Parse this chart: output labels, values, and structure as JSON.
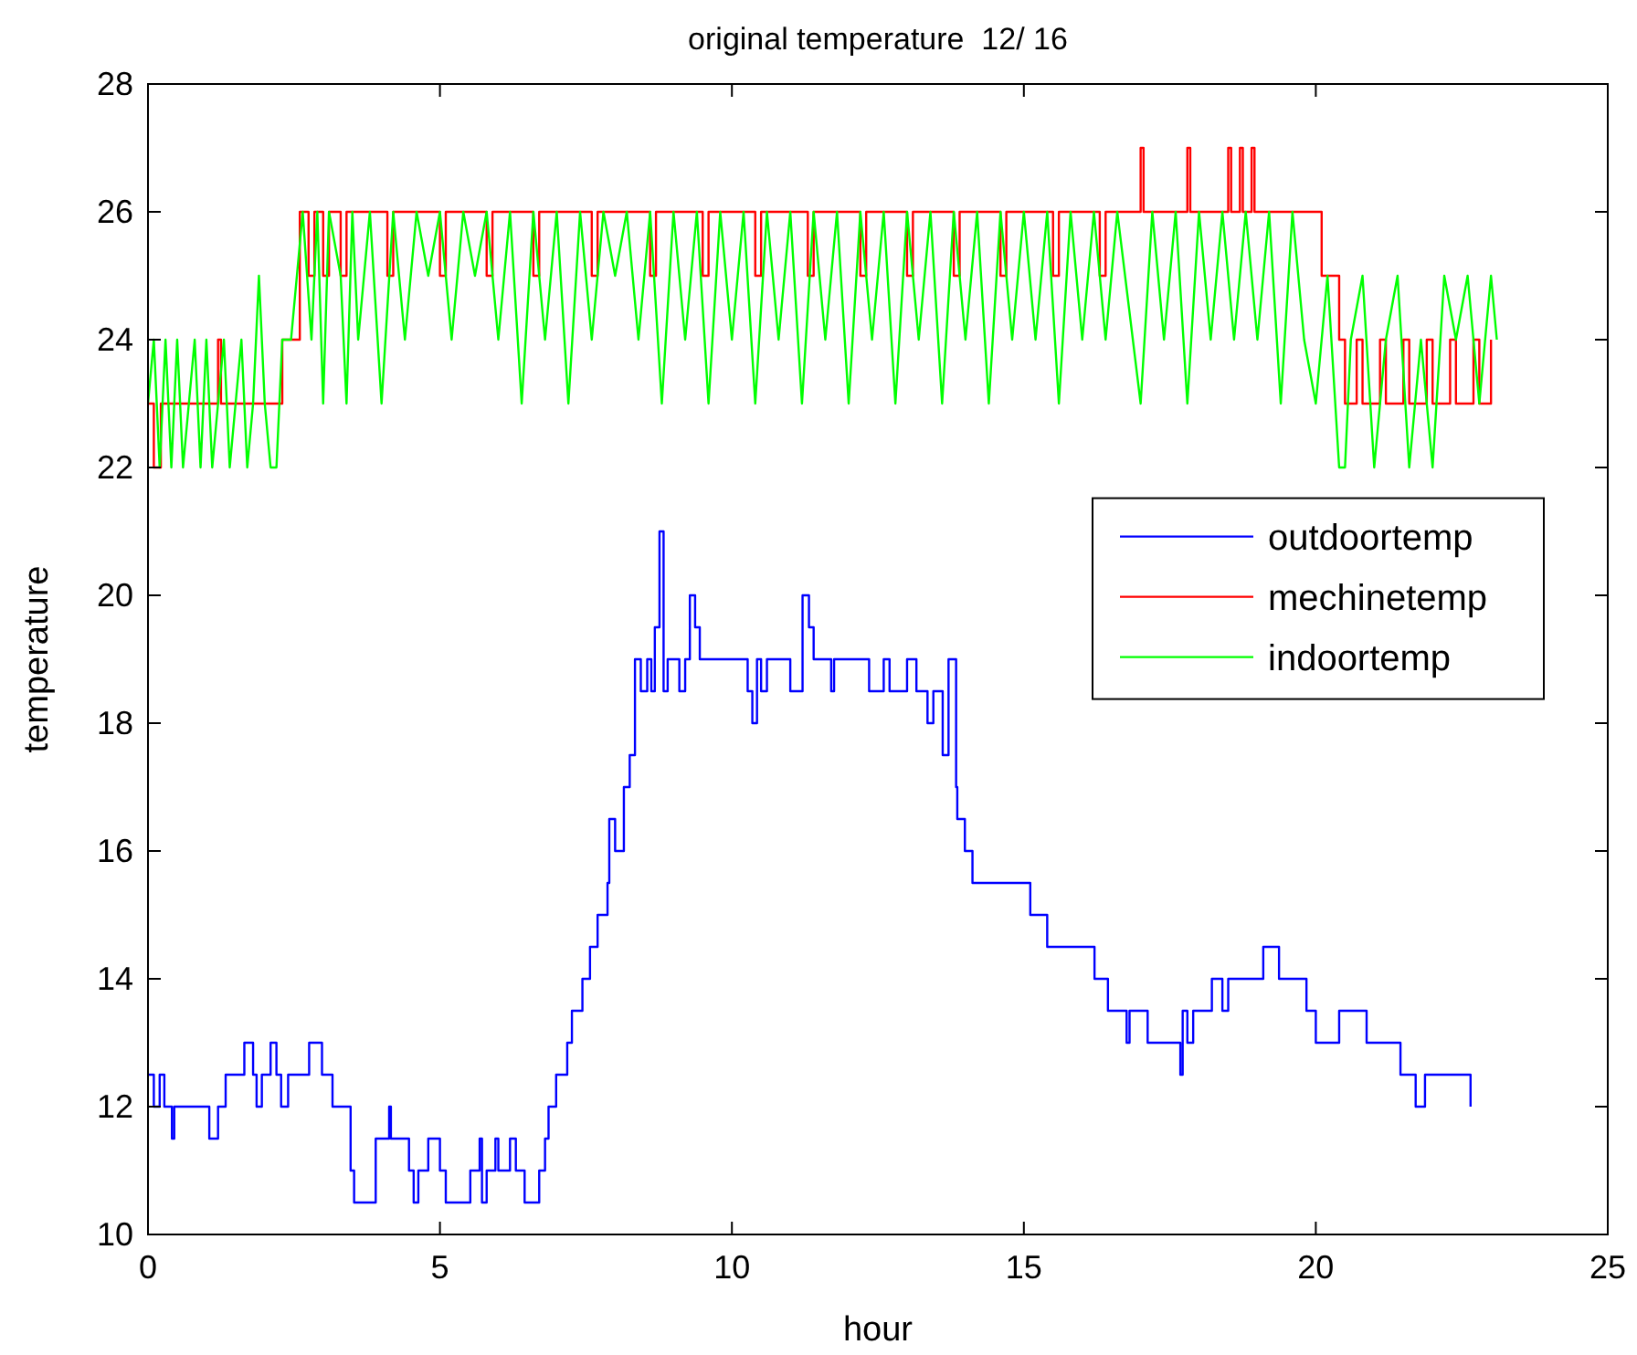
{
  "chart_data": {
    "type": "line",
    "title": "original temperature  12/ 16",
    "xlabel": "hour",
    "ylabel": "temperature",
    "xlim": [
      0,
      25
    ],
    "xticks": [
      0,
      5,
      10,
      15,
      20,
      25
    ],
    "ylim": [
      10,
      28
    ],
    "yticks": [
      10,
      12,
      14,
      16,
      18,
      20,
      22,
      24,
      26,
      28
    ],
    "grid": false,
    "legend": "top right",
    "line_style": "solid",
    "series": [
      {
        "name": "outdoortemp",
        "type": "step",
        "color": "#0000ff",
        "x": [
          0,
          0.1,
          0.2,
          0.28,
          0.41,
          0.45,
          1.05,
          1.2,
          1.33,
          1.65,
          1.8,
          1.86,
          1.95,
          2.1,
          2.2,
          2.28,
          2.4,
          2.76,
          2.98,
          3.16,
          3.47,
          3.53,
          3.6,
          3.9,
          4.13,
          4.16,
          4.47,
          4.55,
          4.63,
          4.8,
          5.0,
          5.1,
          5.52,
          5.68,
          5.72,
          5.8,
          5.95,
          6.0,
          6.2,
          6.3,
          6.45,
          6.7,
          6.8,
          6.86,
          6.99,
          7.18,
          7.26,
          7.44,
          7.57,
          7.7,
          7.87,
          7.9,
          8.0,
          8.15,
          8.25,
          8.34,
          8.44,
          8.55,
          8.62,
          8.68,
          8.76,
          8.83,
          8.9,
          9.1,
          9.2,
          9.28,
          9.37,
          9.45,
          9.5,
          10.27,
          10.35,
          10.43,
          10.5,
          10.6,
          11.0,
          11.21,
          11.32,
          11.4,
          11.47,
          11.7,
          11.75,
          12.3,
          12.35,
          12.6,
          12.7,
          13.0,
          13.16,
          13.35,
          13.45,
          13.58,
          13.61,
          13.71,
          13.84,
          13.86,
          13.99,
          14.12,
          15.11,
          15.4,
          16.21,
          16.44,
          16.76,
          16.81,
          17.12,
          17.68,
          17.72,
          17.8,
          17.9,
          18.02,
          18.22,
          18.4,
          18.5,
          19.1,
          19.37,
          19.84,
          20.0,
          20.4,
          20.87,
          21.45,
          21.71,
          21.87,
          22.65
        ],
        "values": [
          12.5,
          12,
          12.5,
          12,
          11.5,
          12,
          11.5,
          12,
          12.5,
          13,
          12.5,
          12,
          12.5,
          13,
          12.5,
          12,
          12.5,
          13,
          12.5,
          12,
          11,
          10.5,
          10.5,
          11.5,
          12,
          11.5,
          11,
          10.5,
          11,
          11.5,
          11,
          10.5,
          11,
          11.5,
          10.5,
          11,
          11.5,
          11,
          11.5,
          11,
          10.5,
          11,
          11.5,
          12,
          12.5,
          13,
          13.5,
          14,
          14.5,
          15,
          15.5,
          16.5,
          16,
          17,
          17.5,
          19,
          18.5,
          19,
          18.5,
          19.5,
          21,
          18.5,
          19,
          18.5,
          19,
          20,
          19.5,
          19,
          19,
          18.5,
          18,
          19,
          18.5,
          19,
          18.5,
          20,
          19.5,
          19,
          19,
          18.5,
          19,
          19,
          18.5,
          19,
          18.5,
          19,
          18.5,
          18,
          18.5,
          18.5,
          17.5,
          19,
          17,
          16.5,
          16,
          15.5,
          15,
          14.5,
          14,
          13.5,
          13,
          13.5,
          13,
          12.5,
          13.5,
          13,
          13.5,
          13.5,
          14,
          13.5,
          14,
          14.5,
          14,
          13.5,
          13,
          13.5,
          13,
          12.5,
          12,
          12.5,
          12
        ]
      },
      {
        "name": "mechinetemp",
        "type": "step",
        "color": "#ff0000",
        "x": [
          0,
          0.1,
          0.22,
          1.2,
          1.25,
          2.3,
          2.6,
          2.75,
          2.85,
          3.0,
          3.1,
          3.3,
          3.4,
          4.1,
          4.2,
          5.0,
          5.1,
          5.8,
          5.9,
          6.6,
          6.7,
          7.6,
          7.7,
          8.6,
          8.7,
          9.5,
          9.6,
          10.4,
          10.5,
          11.3,
          11.4,
          12.2,
          12.3,
          13.0,
          13.1,
          13.8,
          13.9,
          14.6,
          14.7,
          15.5,
          15.6,
          16.3,
          16.4,
          17.0,
          17.05,
          17.8,
          17.85,
          18.5,
          18.55,
          18.7,
          18.75,
          18.9,
          18.95,
          20.1,
          20.4,
          20.5,
          20.7,
          20.8,
          21.1,
          21.2,
          21.5,
          21.6,
          21.9,
          22.0,
          22.3,
          22.4,
          22.7,
          22.8,
          23.0
        ],
        "values": [
          23,
          22,
          23,
          24,
          23,
          24,
          26,
          25,
          26,
          25,
          26,
          25,
          26,
          25,
          26,
          25,
          26,
          25,
          26,
          25,
          26,
          25,
          26,
          25,
          26,
          25,
          26,
          25,
          26,
          25,
          26,
          25,
          26,
          25,
          26,
          25,
          26,
          25,
          26,
          25,
          26,
          25,
          26,
          27,
          26,
          27,
          26,
          27,
          26,
          27,
          26,
          27,
          26,
          25,
          24,
          23,
          24,
          23,
          24,
          23,
          24,
          23,
          24,
          23,
          24,
          23,
          24,
          23,
          24
        ]
      },
      {
        "name": "indoortemp",
        "color": "#00ff00",
        "x": [
          0,
          0.1,
          0.2,
          0.3,
          0.4,
          0.5,
          0.6,
          0.7,
          0.8,
          0.9,
          1.0,
          1.1,
          1.2,
          1.3,
          1.4,
          1.5,
          1.6,
          1.7,
          1.8,
          1.9,
          2.0,
          2.1,
          2.2,
          2.3,
          2.45,
          2.55,
          2.65,
          2.8,
          2.9,
          3.0,
          3.1,
          3.3,
          3.4,
          3.5,
          3.6,
          3.8,
          4.0,
          4.2,
          4.4,
          4.6,
          4.8,
          5.0,
          5.2,
          5.4,
          5.6,
          5.8,
          6.0,
          6.2,
          6.4,
          6.6,
          6.8,
          7.0,
          7.2,
          7.4,
          7.6,
          7.8,
          8.0,
          8.2,
          8.4,
          8.6,
          8.8,
          9.0,
          9.2,
          9.4,
          9.6,
          9.8,
          10.0,
          10.2,
          10.4,
          10.6,
          10.8,
          11.0,
          11.2,
          11.4,
          11.6,
          11.8,
          12.0,
          12.2,
          12.4,
          12.6,
          12.8,
          13.0,
          13.2,
          13.4,
          13.6,
          13.8,
          14.0,
          14.2,
          14.4,
          14.6,
          14.8,
          15.0,
          15.2,
          15.4,
          15.6,
          15.8,
          16.0,
          16.2,
          16.4,
          16.6,
          17.0,
          17.2,
          17.4,
          17.6,
          17.8,
          18.0,
          18.2,
          18.4,
          18.6,
          18.8,
          19.0,
          19.2,
          19.4,
          19.6,
          19.8,
          20.0,
          20.2,
          20.4,
          20.5,
          20.6,
          20.8,
          21.0,
          21.2,
          21.4,
          21.6,
          21.8,
          22.0,
          22.2,
          22.4,
          22.6,
          22.8,
          23.0,
          23.1
        ],
        "values": [
          23,
          24,
          22,
          24,
          22,
          24,
          22,
          23,
          24,
          22,
          24,
          22,
          23,
          24,
          22,
          23,
          24,
          22,
          23,
          25,
          23,
          22,
          22,
          24,
          24,
          25,
          26,
          24,
          26,
          23,
          26,
          25,
          23,
          26,
          24,
          26,
          23,
          26,
          24,
          26,
          25,
          26,
          24,
          26,
          25,
          26,
          24,
          26,
          23,
          26,
          24,
          26,
          23,
          26,
          24,
          26,
          25,
          26,
          24,
          26,
          23,
          26,
          24,
          26,
          23,
          26,
          24,
          26,
          23,
          26,
          24,
          26,
          23,
          26,
          24,
          26,
          23,
          26,
          24,
          26,
          23,
          26,
          24,
          26,
          23,
          26,
          24,
          26,
          23,
          26,
          24,
          26,
          24,
          26,
          23,
          26,
          24,
          26,
          24,
          26,
          23,
          26,
          24,
          26,
          23,
          26,
          24,
          26,
          24,
          26,
          24,
          26,
          23,
          26,
          24,
          23,
          25,
          22,
          22,
          24,
          25,
          22,
          24,
          25,
          22,
          24,
          22,
          25,
          24,
          25,
          23,
          25,
          24
        ]
      }
    ]
  }
}
